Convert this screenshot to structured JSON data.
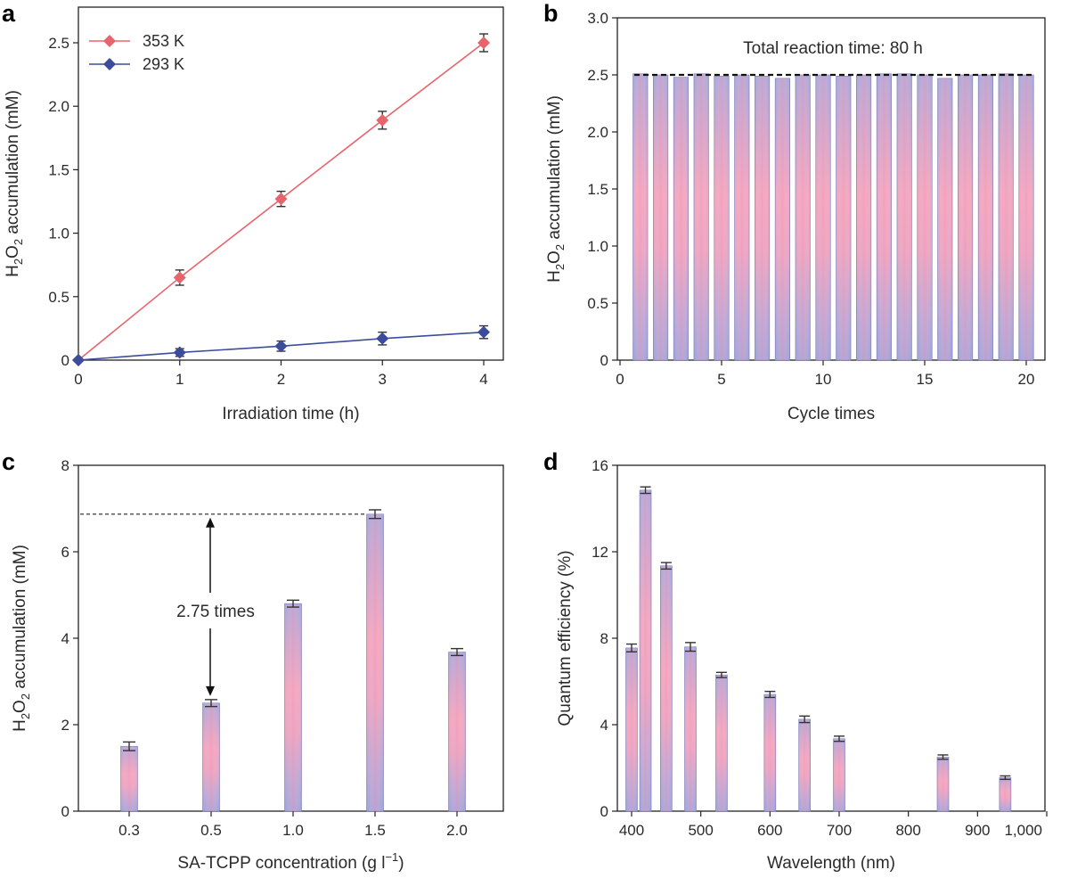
{
  "chart_data": [
    {
      "panel": "a",
      "type": "line",
      "xlabel": "Irradiation time (h)",
      "ylabel": "accumulation (mM)",
      "ylabel_species": "H2O2",
      "xlim": [
        0,
        4.2
      ],
      "ylim": [
        0,
        2.65
      ],
      "xticks": [
        "0",
        "1",
        "2",
        "3",
        "4"
      ],
      "yticks": [
        "0",
        "0.5",
        "1.0",
        "1.5",
        "2.0",
        "2.5"
      ],
      "legend_position": "top-left",
      "series": [
        {
          "name": "353 K",
          "color": "#e8646c",
          "x": [
            0,
            1,
            2,
            3,
            4
          ],
          "y": [
            0,
            0.65,
            1.27,
            1.89,
            2.5
          ],
          "err": [
            0,
            0.06,
            0.06,
            0.07,
            0.07
          ]
        },
        {
          "name": "293 K",
          "color": "#3c4c9c",
          "x": [
            0,
            1,
            2,
            3,
            4
          ],
          "y": [
            0,
            0.06,
            0.11,
            0.17,
            0.22
          ],
          "err": [
            0,
            0.03,
            0.04,
            0.05,
            0.05
          ]
        }
      ]
    },
    {
      "panel": "b",
      "type": "bar",
      "xlabel": "Cycle times",
      "ylabel": "accumulation (mM)",
      "ylabel_species": "H2O2",
      "annotation": "Total reaction time: 80 h",
      "reference_line": 2.5,
      "xlim": [
        0,
        20.8
      ],
      "ylim": [
        0,
        3.0
      ],
      "xticks": [
        "0",
        "5",
        "10",
        "15",
        "20"
      ],
      "yticks": [
        "0",
        "0.5",
        "1.0",
        "1.5",
        "2.0",
        "2.5",
        "3.0"
      ],
      "categories": [
        1,
        2,
        3,
        4,
        5,
        6,
        7,
        8,
        9,
        10,
        11,
        12,
        13,
        14,
        15,
        16,
        17,
        18,
        19,
        20
      ],
      "values": [
        2.51,
        2.5,
        2.48,
        2.51,
        2.49,
        2.5,
        2.49,
        2.47,
        2.5,
        2.5,
        2.49,
        2.5,
        2.51,
        2.51,
        2.5,
        2.47,
        2.5,
        2.5,
        2.51,
        2.5
      ]
    },
    {
      "panel": "c",
      "type": "bar",
      "xlabel": "SA-TCPP concentration (g l",
      "xlabel_sup": "−1",
      "xlabel_end": ")",
      "ylabel": "accumulation (mM)",
      "ylabel_species": "H2O2",
      "annotation": "2.75 times",
      "reference_line": 6.87,
      "ylim": [
        0,
        8
      ],
      "yticks": [
        "0",
        "2",
        "4",
        "6",
        "8"
      ],
      "categories": [
        "0.3",
        "0.5",
        "1.0",
        "1.5",
        "2.0"
      ],
      "values": [
        1.5,
        2.5,
        4.8,
        6.87,
        3.68
      ],
      "err": [
        0.1,
        0.08,
        0.08,
        0.1,
        0.08
      ]
    },
    {
      "panel": "d",
      "type": "bar",
      "xlabel": "Wavelength (nm)",
      "ylabel": "Quantum efficiency (%)",
      "xlim": [
        380,
        1000
      ],
      "ylim": [
        0,
        16
      ],
      "xticks": [
        "400",
        "500",
        "600",
        "700",
        "800",
        "900",
        "1,000"
      ],
      "yticks": [
        "0",
        "4",
        "8",
        "12",
        "16"
      ],
      "x": [
        400,
        420,
        450,
        485,
        530,
        600,
        650,
        700,
        850,
        940
      ],
      "values": [
        7.55,
        14.85,
        11.35,
        7.6,
        6.3,
        5.4,
        4.25,
        3.35,
        2.5,
        1.55
      ],
      "err": [
        0.18,
        0.15,
        0.15,
        0.2,
        0.12,
        0.14,
        0.15,
        0.12,
        0.1,
        0.08
      ]
    }
  ]
}
